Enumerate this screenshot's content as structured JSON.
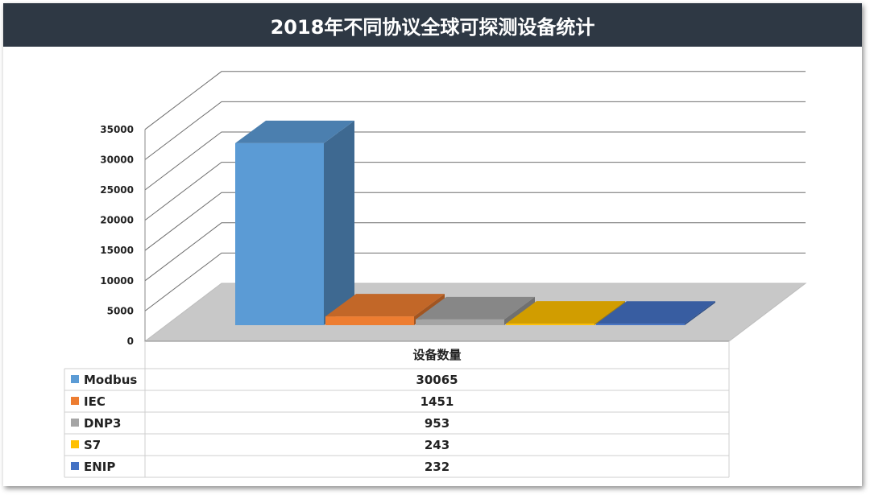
{
  "chart_data": {
    "type": "bar",
    "title": "2018年不同协议全球可探测设备统计",
    "table_header": "设备数量",
    "categories": [
      "Modbus",
      "IEC",
      "DNP3",
      "S7",
      "ENIP"
    ],
    "series": [
      {
        "name": "设备数量",
        "values": [
          30065,
          1451,
          953,
          243,
          232
        ]
      }
    ],
    "colors": [
      "#5b9bd5",
      "#ed7d31",
      "#a5a5a5",
      "#ffc000",
      "#4472c4"
    ],
    "ylim": [
      0,
      35000
    ],
    "yticks": [
      0,
      5000,
      10000,
      15000,
      20000,
      25000,
      30000,
      35000
    ],
    "grid": true,
    "legend": "table-below",
    "three_d": true
  }
}
